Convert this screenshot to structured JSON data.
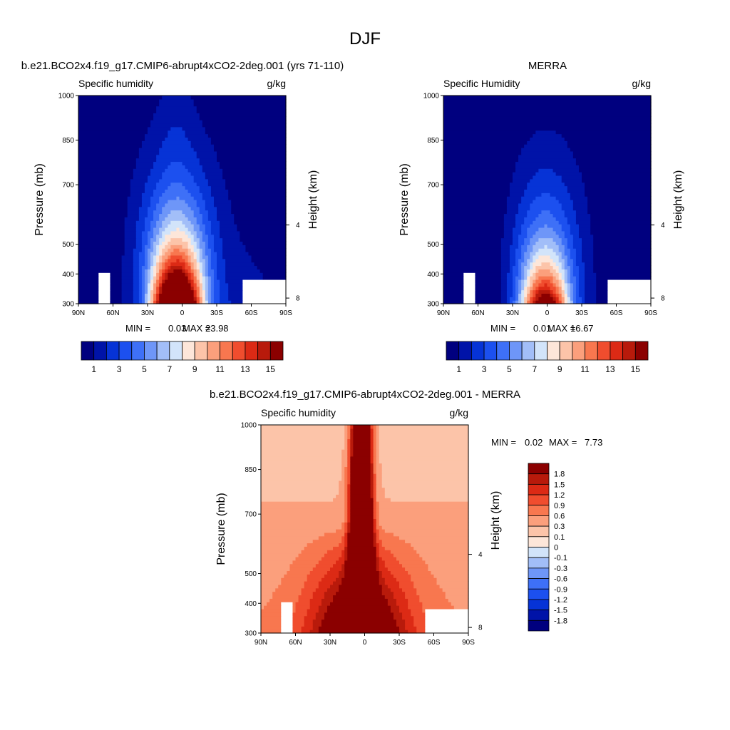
{
  "page": {
    "title": "DJF"
  },
  "chart_data": [
    {
      "type": "heatmap",
      "panel": "model",
      "title": "b.e21.BCO2x4.f19_g17.CMIP6-abrupt4xCO2-2deg.001 (yrs 71-110)",
      "left_label": "Specific humidity",
      "right_label": "g/kg",
      "xlabel": "",
      "ylabel": "Pressure (mb)",
      "y2label": "Height (km)",
      "x_ticks": [
        "90N",
        "60N",
        "30N",
        "0",
        "30S",
        "60S",
        "90S"
      ],
      "x_tick_values": [
        90,
        60,
        30,
        0,
        -30,
        -60,
        -90
      ],
      "y_ticks": [
        "300",
        "400",
        "500",
        "700",
        "850",
        "1000"
      ],
      "y_tick_values": [
        300,
        400,
        500,
        700,
        850,
        1000
      ],
      "y2_ticks": [
        "8",
        "4"
      ],
      "y2_tick_values": [
        8,
        4
      ],
      "xlim": [
        90,
        -90
      ],
      "ylim": [
        1000,
        300
      ],
      "min_label": "MIN =",
      "min": "0.03",
      "max_label": "MAX =",
      "max": "23.98",
      "peak_lat": 5,
      "colorbar": {
        "orientation": "horizontal",
        "levels": [
          "1",
          "2",
          "3",
          "4",
          "5",
          "6",
          "7",
          "8",
          "9",
          "10",
          "11",
          "12",
          "13",
          "14",
          "15"
        ],
        "labels": [
          "1",
          "3",
          "5",
          "7",
          "9",
          "11",
          "13",
          "15"
        ],
        "colors": [
          "#00007f",
          "#0013a8",
          "#0633d6",
          "#1c50ef",
          "#3e70f7",
          "#6e96f8",
          "#a2bef8",
          "#d2e4fa",
          "#fde6d9",
          "#fcc4a9",
          "#fb9f7c",
          "#f8774f",
          "#f04d2e",
          "#dc2a15",
          "#b81a0b",
          "#8b0000"
        ]
      }
    },
    {
      "type": "heatmap",
      "panel": "obs",
      "title": "MERRA",
      "left_label": "Specific Humidity",
      "right_label": "g/kg",
      "xlabel": "",
      "ylabel": "Pressure (mb)",
      "y2label": "Height (km)",
      "x_ticks": [
        "90N",
        "60N",
        "30N",
        "0",
        "30S",
        "60S",
        "90S"
      ],
      "x_tick_values": [
        90,
        60,
        30,
        0,
        -30,
        -60,
        -90
      ],
      "y_ticks": [
        "300",
        "400",
        "500",
        "700",
        "850",
        "1000"
      ],
      "y_tick_values": [
        300,
        400,
        500,
        700,
        850,
        1000
      ],
      "y2_ticks": [
        "8",
        "4"
      ],
      "y2_tick_values": [
        8,
        4
      ],
      "xlim": [
        90,
        -90
      ],
      "ylim": [
        1000,
        300
      ],
      "min_label": "MIN =",
      "min": "0.01",
      "max_label": "MAX =",
      "max": "16.67",
      "peak_lat": 2,
      "colorbar": {
        "orientation": "horizontal",
        "levels": [
          "1",
          "2",
          "3",
          "4",
          "5",
          "6",
          "7",
          "8",
          "9",
          "10",
          "11",
          "12",
          "13",
          "14",
          "15"
        ],
        "labels": [
          "1",
          "3",
          "5",
          "7",
          "9",
          "11",
          "13",
          "15"
        ],
        "colors": [
          "#00007f",
          "#0013a8",
          "#0633d6",
          "#1c50ef",
          "#3e70f7",
          "#6e96f8",
          "#a2bef8",
          "#d2e4fa",
          "#fde6d9",
          "#fcc4a9",
          "#fb9f7c",
          "#f8774f",
          "#f04d2e",
          "#dc2a15",
          "#b81a0b",
          "#8b0000"
        ]
      }
    },
    {
      "type": "heatmap",
      "panel": "diff",
      "title": "b.e21.BCO2x4.f19_g17.CMIP6-abrupt4xCO2-2deg.001 - MERRA",
      "left_label": "Specific humidity",
      "right_label": "g/kg",
      "xlabel": "",
      "ylabel": "Pressure (mb)",
      "y2label": "Height (km)",
      "x_ticks": [
        "90N",
        "60N",
        "30N",
        "0",
        "30S",
        "60S",
        "90S"
      ],
      "x_tick_values": [
        90,
        60,
        30,
        0,
        -30,
        -60,
        -90
      ],
      "y_ticks": [
        "300",
        "400",
        "500",
        "700",
        "850",
        "1000"
      ],
      "y_tick_values": [
        300,
        400,
        500,
        700,
        850,
        1000
      ],
      "y2_ticks": [
        "8",
        "4"
      ],
      "y2_tick_values": [
        8,
        4
      ],
      "xlim": [
        90,
        -90
      ],
      "ylim": [
        1000,
        300
      ],
      "min_label": "MIN =",
      "min": "0.02",
      "max_label": "MAX =",
      "max": "7.73",
      "colorbar": {
        "orientation": "vertical",
        "labels": [
          "1.8",
          "1.5",
          "1.2",
          "0.9",
          "0.6",
          "0.3",
          "0.1",
          "0",
          "-0.1",
          "-0.3",
          "-0.6",
          "-0.9",
          "-1.2",
          "-1.5",
          "-1.8"
        ],
        "colors": [
          "#8b0000",
          "#b81a0b",
          "#dc2a15",
          "#f04d2e",
          "#f8774f",
          "#fb9f7c",
          "#fcc4a9",
          "#fde6d9",
          "#d2e4fa",
          "#a2bef8",
          "#6e96f8",
          "#3e70f7",
          "#1c50ef",
          "#0633d6",
          "#0013a8",
          "#00007f"
        ]
      }
    }
  ]
}
